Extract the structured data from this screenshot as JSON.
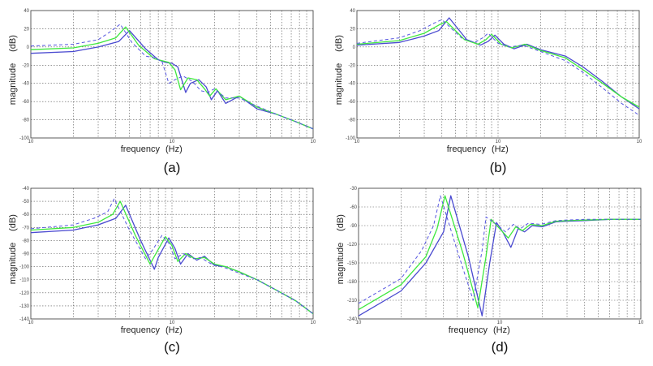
{
  "colors": {
    "series_1": "#4a4ad0",
    "series_2": "#3ee83e",
    "series_3": "#5555e0",
    "grid": "#555555",
    "frame": "#333333"
  },
  "chart_data": [
    {
      "type": "line",
      "caption": "(a)",
      "xlabel": "frequency",
      "xunit": "(Hz)",
      "ylabel": "magnitude",
      "yunit": "(dB)",
      "x_scale": "log",
      "xlim": [
        0.1,
        10
      ],
      "ylim": [
        -100,
        40
      ],
      "yticks": [
        40,
        20,
        0,
        -20,
        -40,
        -60,
        -80,
        -100
      ],
      "ytick_labels": [
        "40",
        "20",
        "0",
        "-20",
        "-40",
        "-60",
        "-80",
        "-100"
      ],
      "xtick_labels": [
        "10",
        "10",
        "10"
      ],
      "grid": true,
      "series": [
        {
          "style": "solid",
          "color_key": "series_1",
          "x": [
            0.1,
            0.2,
            0.3,
            0.42,
            0.5,
            0.65,
            0.8,
            0.9,
            1.0,
            1.1,
            1.25,
            1.35,
            1.55,
            1.75,
            1.9,
            2.1,
            2.4,
            3.0,
            4.0,
            5.5,
            7.5,
            10
          ],
          "y": [
            -7,
            -5,
            0,
            6,
            18,
            -2,
            -14,
            -17,
            -18,
            -22,
            -50,
            -40,
            -36,
            -44,
            -58,
            -48,
            -62,
            -54,
            -68,
            -74,
            -82,
            -90
          ]
        },
        {
          "style": "solid",
          "color_key": "series_2",
          "x": [
            0.1,
            0.2,
            0.3,
            0.4,
            0.47,
            0.58,
            0.75,
            0.85,
            0.95,
            1.05,
            1.15,
            1.3,
            1.5,
            1.7,
            1.85,
            2.05,
            2.4,
            3.0,
            4.0,
            5.5,
            7.5,
            10
          ],
          "y": [
            -3,
            -1,
            4,
            10,
            22,
            2,
            -13,
            -15,
            -17,
            -25,
            -47,
            -34,
            -36,
            -46,
            -54,
            -46,
            -58,
            -54,
            -66,
            -74,
            -82,
            -90
          ]
        },
        {
          "style": "dashed",
          "color_key": "series_3",
          "x": [
            0.1,
            0.2,
            0.3,
            0.36,
            0.43,
            0.52,
            0.65,
            0.75,
            0.85,
            0.95,
            1.05,
            1.2,
            1.4,
            1.6,
            1.8,
            2.0,
            2.4,
            3.0,
            4.0,
            5.5,
            7.5,
            10
          ],
          "y": [
            1,
            3,
            8,
            16,
            25,
            5,
            -10,
            -12,
            -16,
            -40,
            -36,
            -32,
            -38,
            -48,
            -50,
            -46,
            -56,
            -56,
            -65,
            -74,
            -82,
            -90
          ]
        }
      ]
    },
    {
      "type": "line",
      "caption": "(b)",
      "xlabel": "frequency",
      "xunit": "(Hz)",
      "ylabel": "magnitude",
      "yunit": "(dB)",
      "x_scale": "log",
      "xlim": [
        0.1,
        10
      ],
      "ylim": [
        -100,
        40
      ],
      "yticks": [
        40,
        20,
        0,
        -20,
        -40,
        -60,
        -80,
        -100
      ],
      "ytick_labels": [
        "40",
        "20",
        "0",
        "-20",
        "-40",
        "-60",
        "-80",
        "-100"
      ],
      "xtick_labels": [
        "10",
        "10",
        "10"
      ],
      "grid": true,
      "series": [
        {
          "style": "solid",
          "color_key": "series_1",
          "x": [
            0.1,
            0.2,
            0.3,
            0.38,
            0.45,
            0.6,
            0.75,
            0.85,
            0.95,
            1.1,
            1.3,
            1.6,
            2.0,
            3.0,
            4.0,
            5.5,
            7.5,
            10
          ],
          "y": [
            2,
            5,
            12,
            18,
            32,
            8,
            2,
            6,
            13,
            3,
            -2,
            3,
            -3,
            -10,
            -22,
            -38,
            -55,
            -68
          ]
        },
        {
          "style": "solid",
          "color_key": "series_2",
          "x": [
            0.1,
            0.2,
            0.3,
            0.38,
            0.43,
            0.58,
            0.72,
            0.82,
            0.9,
            1.05,
            1.25,
            1.55,
            2.0,
            3.0,
            4.0,
            5.5,
            7.5,
            10
          ],
          "y": [
            3,
            7,
            15,
            24,
            28,
            8,
            3,
            8,
            14,
            3,
            -1,
            3,
            -4,
            -12,
            -25,
            -40,
            -55,
            -66
          ]
        },
        {
          "style": "dashed",
          "color_key": "series_3",
          "x": [
            0.1,
            0.2,
            0.28,
            0.35,
            0.4,
            0.55,
            0.68,
            0.78,
            0.85,
            1.0,
            1.2,
            1.5,
            2.0,
            3.0,
            4.0,
            5.5,
            7.5,
            10
          ],
          "y": [
            4,
            10,
            18,
            26,
            30,
            10,
            5,
            10,
            15,
            4,
            0,
            2,
            -5,
            -15,
            -28,
            -45,
            -62,
            -75
          ]
        }
      ]
    },
    {
      "type": "line",
      "caption": "(c)",
      "xlabel": "frequency",
      "xunit": "(Hz)",
      "ylabel": "magnitude",
      "yunit": "(dB)",
      "x_scale": "log",
      "xlim": [
        0.1,
        10
      ],
      "ylim": [
        -140,
        -40
      ],
      "yticks": [
        -40,
        -50,
        -60,
        -70,
        -80,
        -90,
        -100,
        -110,
        -120,
        -130,
        -140
      ],
      "ytick_labels": [
        "-40",
        "-50",
        "-60",
        "-70",
        "-80",
        "-90",
        "-100",
        "-110",
        "-120",
        "-130",
        "-140"
      ],
      "xtick_labels": [
        "10",
        "10",
        "10"
      ],
      "grid": true,
      "series": [
        {
          "style": "solid",
          "color_key": "series_1",
          "x": [
            0.1,
            0.2,
            0.3,
            0.4,
            0.47,
            0.6,
            0.75,
            0.8,
            0.95,
            1.05,
            1.15,
            1.3,
            1.5,
            1.7,
            2.0,
            2.4,
            3.0,
            4.0,
            5.5,
            7.5,
            10
          ],
          "y": [
            -74,
            -72,
            -68,
            -63,
            -53,
            -80,
            -102,
            -93,
            -78,
            -86,
            -98,
            -90,
            -95,
            -92,
            -99,
            -100,
            -104,
            -110,
            -118,
            -126,
            -136
          ]
        },
        {
          "style": "solid",
          "color_key": "series_2",
          "x": [
            0.1,
            0.2,
            0.3,
            0.38,
            0.43,
            0.55,
            0.7,
            0.76,
            0.9,
            1.0,
            1.1,
            1.25,
            1.45,
            1.7,
            2.0,
            2.4,
            3.0,
            4.0,
            5.5,
            7.5,
            10
          ],
          "y": [
            -72,
            -70,
            -66,
            -60,
            -50,
            -76,
            -98,
            -91,
            -77,
            -84,
            -96,
            -90,
            -94,
            -93,
            -98,
            -100,
            -104,
            -110,
            -118,
            -126,
            -136
          ]
        },
        {
          "style": "dashed",
          "color_key": "series_3",
          "x": [
            0.1,
            0.2,
            0.28,
            0.35,
            0.39,
            0.5,
            0.65,
            0.72,
            0.85,
            0.95,
            1.05,
            1.2,
            1.4,
            1.6,
            1.9,
            2.4,
            3.0,
            4.0,
            5.5,
            7.5,
            10
          ],
          "y": [
            -71,
            -68,
            -63,
            -58,
            -48,
            -72,
            -94,
            -88,
            -76,
            -82,
            -94,
            -90,
            -94,
            -93,
            -98,
            -101,
            -105,
            -110,
            -118,
            -126,
            -136
          ]
        }
      ]
    },
    {
      "type": "line",
      "caption": "(d)",
      "xlabel": "frequency",
      "xunit": "(Hz)",
      "ylabel": "magnitude",
      "yunit": "(dB)",
      "x_scale": "log",
      "xlim": [
        0.1,
        10
      ],
      "ylim": [
        -240,
        -30
      ],
      "yticks": [
        -30,
        -60,
        -90,
        -120,
        -150,
        -180,
        -210,
        -240
      ],
      "ytick_labels": [
        "-30",
        "-60",
        "-90",
        "-120",
        "-150",
        "-180",
        "-210",
        "-240"
      ],
      "xtick_labels": [
        "10",
        "10",
        "10"
      ],
      "grid": true,
      "series": [
        {
          "style": "solid",
          "color_key": "series_1",
          "x": [
            0.1,
            0.2,
            0.3,
            0.4,
            0.45,
            0.6,
            0.75,
            0.85,
            0.95,
            1.05,
            1.2,
            1.35,
            1.5,
            1.7,
            2.0,
            2.5,
            3.0,
            4.0,
            6.0,
            10
          ],
          "y": [
            -235,
            -195,
            -150,
            -100,
            -42,
            -140,
            -235,
            -150,
            -85,
            -100,
            -125,
            -95,
            -100,
            -90,
            -92,
            -84,
            -83,
            -82,
            -80,
            -80
          ]
        },
        {
          "style": "solid",
          "color_key": "series_2",
          "x": [
            0.1,
            0.2,
            0.3,
            0.36,
            0.41,
            0.55,
            0.7,
            0.8,
            0.87,
            1.0,
            1.15,
            1.3,
            1.45,
            1.65,
            2.0,
            2.5,
            3.0,
            4.0,
            6.0,
            10
          ],
          "y": [
            -225,
            -185,
            -140,
            -95,
            -42,
            -135,
            -222,
            -140,
            -80,
            -95,
            -110,
            -92,
            -98,
            -88,
            -90,
            -83,
            -82,
            -81,
            -80,
            -80
          ]
        },
        {
          "style": "dashed",
          "color_key": "series_3",
          "x": [
            0.1,
            0.2,
            0.28,
            0.34,
            0.38,
            0.5,
            0.65,
            0.75,
            0.8,
            0.95,
            1.1,
            1.25,
            1.4,
            1.6,
            1.95,
            2.5,
            3.0,
            4.0,
            6.0,
            10
          ],
          "y": [
            -215,
            -175,
            -130,
            -90,
            -42,
            -130,
            -210,
            -130,
            -76,
            -88,
            -100,
            -88,
            -95,
            -86,
            -88,
            -82,
            -81,
            -80,
            -80,
            -80
          ]
        }
      ]
    }
  ]
}
